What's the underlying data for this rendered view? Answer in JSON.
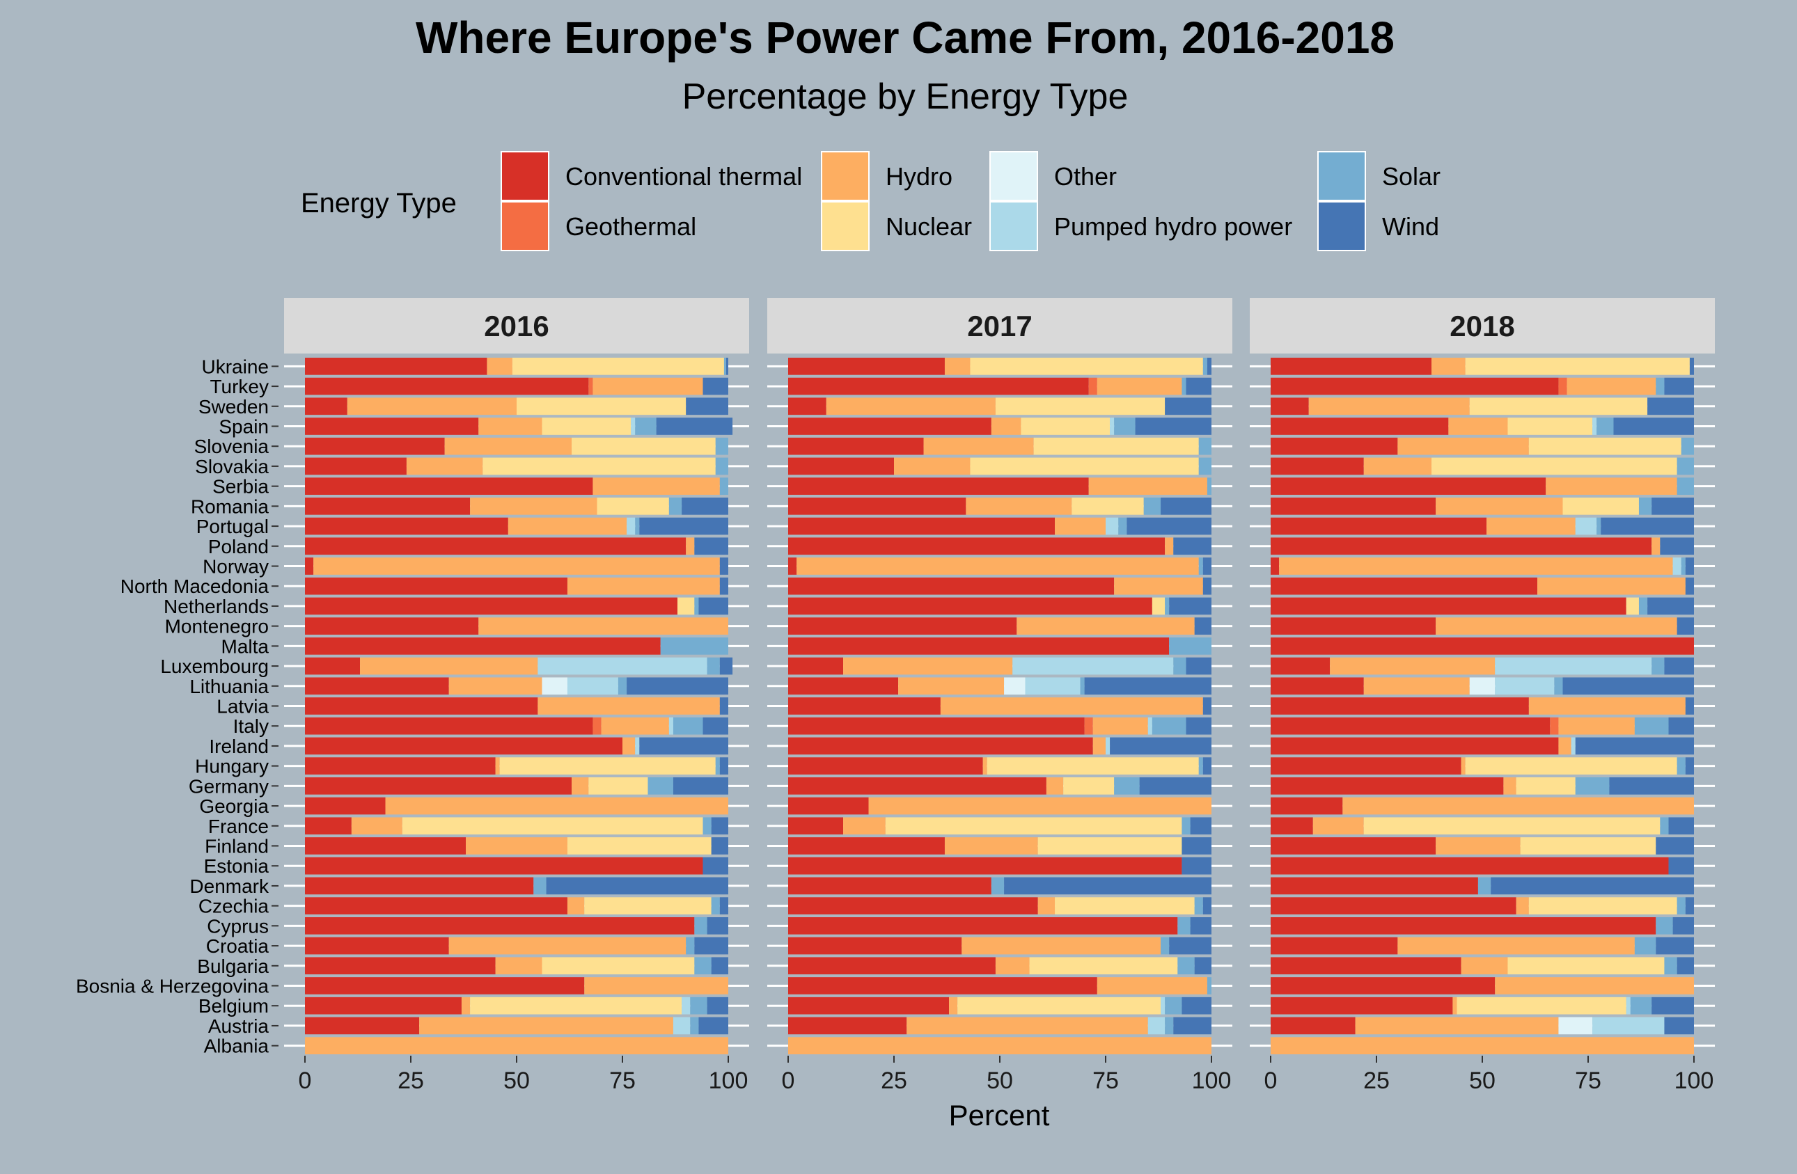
{
  "chart_data": {
    "type": "bar",
    "orientation": "horizontal",
    "stacked": true,
    "title": "Where Europe's Power Came From, 2016-2018",
    "subtitle": "Percentage by Energy Type",
    "xlabel": "Percent",
    "ylabel": "",
    "xlim": [
      0,
      100
    ],
    "x_ticks": [
      "0",
      "25",
      "50",
      "75",
      "100"
    ],
    "legend": {
      "title": "Energy Type",
      "placement": "top",
      "entries": [
        {
          "name": "Conventional thermal",
          "color": "#d73027"
        },
        {
          "name": "Geothermal",
          "color": "#f46d43"
        },
        {
          "name": "Hydro",
          "color": "#fdae61"
        },
        {
          "name": "Nuclear",
          "color": "#fee090"
        },
        {
          "name": "Other",
          "color": "#e0f3f8"
        },
        {
          "name": "Pumped hydro power",
          "color": "#abd9e9"
        },
        {
          "name": "Solar",
          "color": "#74add1"
        },
        {
          "name": "Wind",
          "color": "#4575b4"
        }
      ]
    },
    "categories": [
      "Ukraine",
      "Turkey",
      "Sweden",
      "Spain",
      "Slovenia",
      "Slovakia",
      "Serbia",
      "Romania",
      "Portugal",
      "Poland",
      "Norway",
      "North Macedonia",
      "Netherlands",
      "Montenegro",
      "Malta",
      "Luxembourg",
      "Lithuania",
      "Latvia",
      "Italy",
      "Ireland",
      "Hungary",
      "Germany",
      "Georgia",
      "France",
      "Finland",
      "Estonia",
      "Denmark",
      "Czechia",
      "Cyprus",
      "Croatia",
      "Bulgaria",
      "Bosnia & Herzegovina",
      "Belgium",
      "Austria",
      "Albania"
    ],
    "panels": [
      {
        "label": "2016",
        "rows": {
          "Ukraine": [
            43,
            0,
            6,
            50,
            0,
            0,
            0.5,
            0.5
          ],
          "Turkey": [
            67,
            1,
            26,
            0,
            0,
            0,
            0,
            6
          ],
          "Sweden": [
            10,
            0,
            40,
            40,
            0,
            0,
            0,
            10
          ],
          "Spain": [
            41,
            0,
            15,
            21,
            0,
            1,
            5,
            18
          ],
          "Slovenia": [
            33,
            0,
            30,
            34,
            0,
            0,
            3,
            0
          ],
          "Slovakia": [
            24,
            0,
            18,
            55,
            0,
            0,
            3,
            0
          ],
          "Serbia": [
            68,
            0,
            30,
            0,
            0,
            0,
            2,
            0
          ],
          "Romania": [
            39,
            0,
            30,
            17,
            0,
            0,
            3,
            11
          ],
          "Portugal": [
            48,
            0,
            28,
            0,
            0,
            2,
            1,
            21
          ],
          "Poland": [
            90,
            0,
            2,
            0,
            0,
            0,
            0,
            8
          ],
          "Norway": [
            2,
            0,
            96,
            0,
            0,
            0,
            0,
            2
          ],
          "North Macedonia": [
            62,
            0,
            36,
            0,
            0,
            0,
            0,
            2
          ],
          "Netherlands": [
            88,
            0,
            0,
            4,
            0,
            0,
            1,
            7
          ],
          "Montenegro": [
            41,
            0,
            59,
            0,
            0,
            0,
            0,
            0
          ],
          "Malta": [
            84,
            0,
            0,
            0,
            0,
            0,
            16,
            0
          ],
          "Luxembourg": [
            13,
            0,
            42,
            0,
            0,
            40,
            3,
            3
          ],
          "Lithuania": [
            34,
            0,
            22,
            0,
            6,
            12,
            2,
            24
          ],
          "Latvia": [
            55,
            0,
            43,
            0,
            0,
            0,
            0,
            2
          ],
          "Italy": [
            68,
            2,
            16,
            0,
            0,
            1,
            7,
            6
          ],
          "Ireland": [
            75,
            0,
            3,
            0,
            0,
            1,
            0,
            21
          ],
          "Hungary": [
            45,
            0,
            1,
            51,
            0,
            0,
            1,
            2
          ],
          "Germany": [
            63,
            0,
            4,
            14,
            0,
            0,
            6,
            13
          ],
          "Georgia": [
            19,
            0,
            81,
            0,
            0,
            0,
            0,
            0
          ],
          "France": [
            11,
            0,
            12,
            71,
            0,
            0,
            2,
            4
          ],
          "Finland": [
            38,
            0,
            24,
            34,
            0,
            0,
            0,
            4
          ],
          "Estonia": [
            94,
            0,
            0,
            0,
            0,
            0,
            0,
            6
          ],
          "Denmark": [
            54,
            0,
            0,
            0,
            0,
            0,
            3,
            43
          ],
          "Czechia": [
            62,
            0,
            4,
            30,
            0,
            0,
            2,
            2
          ],
          "Cyprus": [
            92,
            0,
            0,
            0,
            0,
            0,
            3,
            5
          ],
          "Croatia": [
            34,
            0,
            56,
            0,
            0,
            0,
            2,
            8
          ],
          "Bulgaria": [
            45,
            0,
            11,
            36,
            0,
            0,
            4,
            4
          ],
          "Bosnia & Herzegovina": [
            66,
            0,
            34,
            0,
            0,
            0,
            0,
            0
          ],
          "Belgium": [
            37,
            0,
            2,
            50,
            0,
            2,
            4,
            5
          ],
          "Austria": [
            27,
            0,
            60,
            0,
            0,
            4,
            2,
            7
          ],
          "Albania": [
            0,
            0,
            100,
            0,
            0,
            0,
            0,
            0
          ]
        }
      },
      {
        "label": "2017",
        "rows": {
          "Ukraine": [
            37,
            0,
            6,
            55,
            0,
            0,
            1,
            1
          ],
          "Turkey": [
            71,
            2,
            20,
            0,
            0,
            0,
            1,
            6
          ],
          "Sweden": [
            9,
            0,
            40,
            40,
            0,
            0,
            0,
            11
          ],
          "Spain": [
            48,
            0,
            7,
            21,
            0,
            1,
            5,
            18
          ],
          "Slovenia": [
            32,
            0,
            26,
            39,
            0,
            0,
            3,
            0
          ],
          "Slovakia": [
            25,
            0,
            18,
            54,
            0,
            0,
            3,
            0
          ],
          "Serbia": [
            71,
            0,
            28,
            0,
            0,
            0,
            1,
            0
          ],
          "Romania": [
            42,
            0,
            25,
            17,
            0,
            0,
            4,
            12
          ],
          "Portugal": [
            63,
            0,
            12,
            0,
            0,
            3,
            2,
            20
          ],
          "Poland": [
            89,
            0,
            2,
            0,
            0,
            0,
            0,
            9
          ],
          "Norway": [
            2,
            0,
            95,
            0,
            0,
            0,
            1,
            2
          ],
          "North Macedonia": [
            77,
            0,
            21,
            0,
            0,
            0,
            0,
            2
          ],
          "Netherlands": [
            86,
            0,
            0,
            3,
            0,
            0,
            1,
            10
          ],
          "Montenegro": [
            54,
            0,
            42,
            0,
            0,
            0,
            0,
            4
          ],
          "Malta": [
            90,
            0,
            0,
            0,
            0,
            0,
            10,
            0
          ],
          "Luxembourg": [
            13,
            0,
            40,
            0,
            0,
            38,
            3,
            6
          ],
          "Lithuania": [
            26,
            0,
            25,
            0,
            5,
            13,
            1,
            30
          ],
          "Latvia": [
            36,
            0,
            62,
            0,
            0,
            0,
            0,
            2
          ],
          "Italy": [
            70,
            2,
            13,
            0,
            0,
            1,
            8,
            6
          ],
          "Ireland": [
            72,
            0,
            3,
            0,
            0,
            1,
            0,
            24
          ],
          "Hungary": [
            46,
            0,
            1,
            50,
            0,
            0,
            1,
            2
          ],
          "Germany": [
            61,
            0,
            4,
            12,
            0,
            0,
            6,
            17
          ],
          "Georgia": [
            19,
            0,
            81,
            0,
            0,
            0,
            0,
            0
          ],
          "France": [
            13,
            0,
            10,
            70,
            0,
            0,
            2,
            5
          ],
          "Finland": [
            37,
            0,
            22,
            34,
            0,
            0,
            0,
            7
          ],
          "Estonia": [
            93,
            0,
            0,
            0,
            0,
            0,
            0,
            7
          ],
          "Denmark": [
            48,
            0,
            0,
            0,
            0,
            0,
            3,
            49
          ],
          "Czechia": [
            59,
            0,
            4,
            33,
            0,
            0,
            2,
            2
          ],
          "Cyprus": [
            92,
            0,
            0,
            0,
            0,
            0,
            3,
            5
          ],
          "Croatia": [
            41,
            0,
            47,
            0,
            0,
            0,
            2,
            10
          ],
          "Bulgaria": [
            49,
            0,
            8,
            35,
            0,
            0,
            4,
            4
          ],
          "Bosnia & Herzegovina": [
            73,
            0,
            26,
            0,
            0,
            0,
            1,
            0
          ],
          "Belgium": [
            38,
            0,
            2,
            48,
            0,
            1,
            4,
            7
          ],
          "Austria": [
            28,
            0,
            57,
            0,
            0,
            4,
            2,
            9
          ],
          "Albania": [
            0,
            0,
            100,
            0,
            0,
            0,
            0,
            0
          ]
        }
      },
      {
        "label": "2018",
        "rows": {
          "Ukraine": [
            38,
            0,
            8,
            53,
            0,
            0,
            0,
            1
          ],
          "Turkey": [
            68,
            2,
            21,
            0,
            0,
            0,
            2,
            7
          ],
          "Sweden": [
            9,
            0,
            38,
            42,
            0,
            0,
            0,
            11
          ],
          "Spain": [
            42,
            0,
            14,
            20,
            0,
            1,
            4,
            19
          ],
          "Slovenia": [
            30,
            0,
            31,
            36,
            0,
            0,
            3,
            0
          ],
          "Slovakia": [
            22,
            0,
            16,
            58,
            0,
            0,
            4,
            0
          ],
          "Serbia": [
            65,
            0,
            31,
            0,
            0,
            0,
            4,
            0
          ],
          "Romania": [
            39,
            0,
            30,
            18,
            0,
            0,
            3,
            10
          ],
          "Portugal": [
            51,
            0,
            21,
            0,
            0,
            5,
            1,
            22
          ],
          "Poland": [
            90,
            0,
            2,
            0,
            0,
            0,
            0,
            8
          ],
          "Norway": [
            2,
            0,
            93,
            0,
            0,
            2,
            1,
            2
          ],
          "North Macedonia": [
            63,
            0,
            35,
            0,
            0,
            0,
            0,
            2
          ],
          "Netherlands": [
            84,
            0,
            0,
            3,
            0,
            0,
            2,
            11
          ],
          "Montenegro": [
            39,
            0,
            57,
            0,
            0,
            0,
            0,
            4
          ],
          "Malta": [
            100,
            0,
            0,
            0,
            0,
            0,
            0,
            0
          ],
          "Luxembourg": [
            14,
            0,
            39,
            0,
            0,
            37,
            3,
            7
          ],
          "Lithuania": [
            22,
            0,
            25,
            0,
            6,
            14,
            2,
            31
          ],
          "Latvia": [
            61,
            0,
            37,
            0,
            0,
            0,
            0,
            2
          ],
          "Italy": [
            66,
            2,
            18,
            0,
            0,
            0,
            8,
            6
          ],
          "Ireland": [
            68,
            0,
            3,
            0,
            0,
            1,
            0,
            28
          ],
          "Hungary": [
            45,
            0,
            1,
            50,
            0,
            0,
            2,
            2
          ],
          "Germany": [
            55,
            0,
            3,
            14,
            0,
            0,
            8,
            20
          ],
          "Georgia": [
            17,
            0,
            83,
            0,
            0,
            0,
            0,
            0
          ],
          "France": [
            10,
            0,
            12,
            70,
            0,
            0,
            2,
            6
          ],
          "Finland": [
            39,
            0,
            20,
            32,
            0,
            0,
            0,
            9
          ],
          "Estonia": [
            94,
            0,
            0,
            0,
            0,
            0,
            0,
            6
          ],
          "Denmark": [
            49,
            0,
            0,
            0,
            0,
            0,
            3,
            48
          ],
          "Czechia": [
            58,
            0,
            3,
            35,
            0,
            0,
            2,
            2
          ],
          "Cyprus": [
            91,
            0,
            0,
            0,
            0,
            0,
            4,
            5
          ],
          "Croatia": [
            30,
            0,
            56,
            0,
            0,
            0,
            5,
            9
          ],
          "Bulgaria": [
            45,
            0,
            11,
            37,
            0,
            0,
            3,
            4
          ],
          "Bosnia & Herzegovina": [
            53,
            0,
            47,
            0,
            0,
            0,
            0,
            0
          ],
          "Belgium": [
            43,
            0,
            1,
            40,
            0,
            1,
            5,
            10
          ],
          "Austria": [
            20,
            0,
            48,
            0,
            8,
            17,
            0,
            7
          ],
          "Albania": [
            0,
            0,
            100,
            0,
            0,
            0,
            0,
            0
          ]
        }
      }
    ]
  }
}
